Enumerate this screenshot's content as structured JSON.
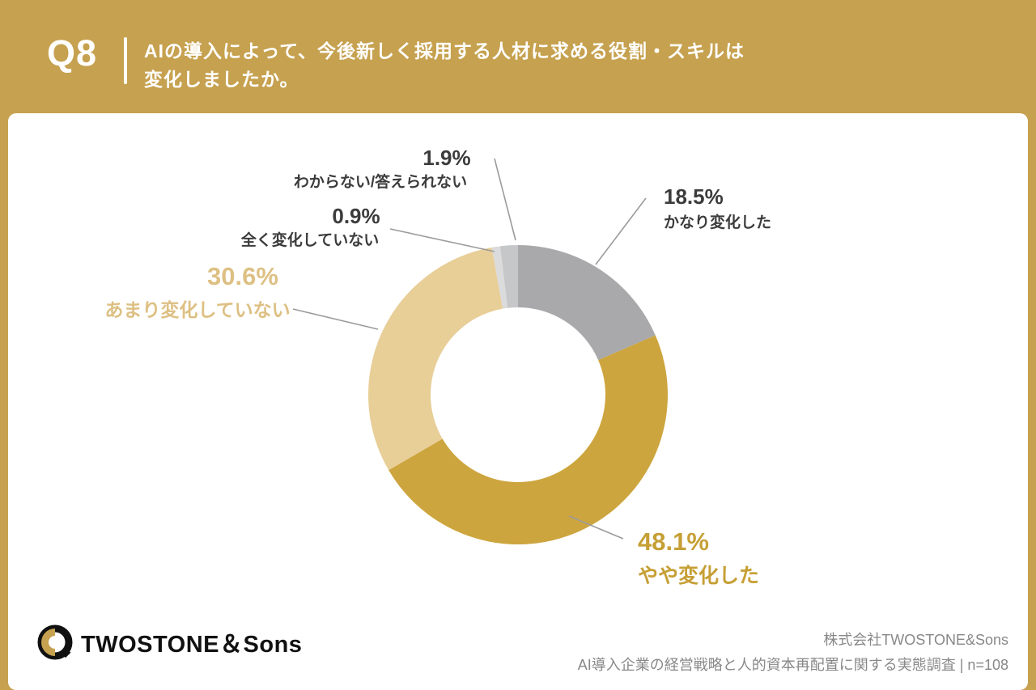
{
  "header": {
    "question_number": "Q8",
    "title_line1": "AIの導入によって、今後新しく採用する人材に求める役割・スキルは",
    "title_line2": "変化しましたか。"
  },
  "chart_data": {
    "type": "pie",
    "subtype": "donut",
    "title": "AIの導入によって、今後新しく採用する人材に求める役割・スキルは変化しましたか。",
    "unit": "%",
    "n": 108,
    "start_angle_deg": 0,
    "direction": "clockwise",
    "legend_position": "callout-labels",
    "series": [
      {
        "label": "かなり変化した",
        "value": 18.5,
        "color": "#A9A9AB",
        "label_color": "#3C3C3C"
      },
      {
        "label": "やや変化した",
        "value": 48.1,
        "color": "#CDA53E",
        "label_color": "#C69F35"
      },
      {
        "label": "あまり変化していない",
        "value": 30.6,
        "color": "#E8CE97",
        "label_color": "#DDC083"
      },
      {
        "label": "全く変化していない",
        "value": 0.9,
        "color": "#DBDBDB",
        "label_color": "#3C3C3C"
      },
      {
        "label": "わからない/答えられない",
        "value": 1.9,
        "color": "#C5C7C9",
        "label_color": "#3C3C3C"
      }
    ]
  },
  "footer": {
    "logo_text": "TWOSTONE＆Sons",
    "company": "株式会社TWOSTONE&Sons",
    "source": "AI導入企業の経営戦略と人的資本再配置に関する実態調査 | n=108"
  },
  "colors": {
    "background": "#C6A14F",
    "card": "#FFFFFF",
    "leader_line": "#9B9B9B",
    "text_dark": "#3C3C3C",
    "footer_text": "#888888"
  }
}
